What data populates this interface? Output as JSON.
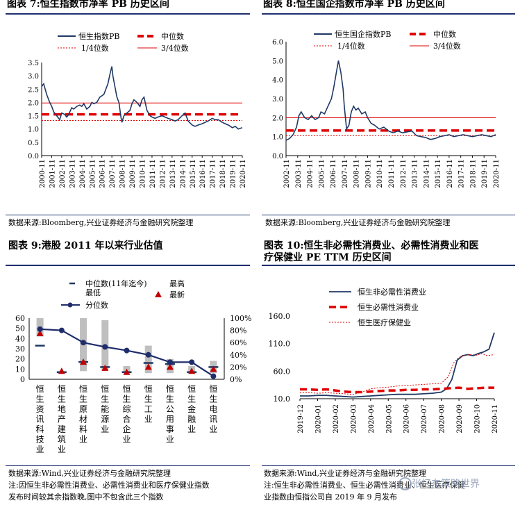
{
  "panels": {
    "p7": {
      "title": "图表 7:恒生指数市净率 PB 历史区间",
      "source": "数据来源:Bloomberg,兴业证券经济与金融研究院整理"
    },
    "p8": {
      "title": "图表 8:恒生国企指数市净率 PB 历史区间",
      "source": "数据来源:Bloomberg,兴业证券经济与金融研究院整理"
    },
    "p9": {
      "title": "图表 9:港股 2011 年以来行业估值",
      "source": "数据来源:Wind,兴业证券经济与金融研究院整理",
      "note1": "注:因恒生非必需性消费业、必需性消费业和医疗保健业指数",
      "note2": "发布时间较其余指数晚,图中不包含此三个指数"
    },
    "p10": {
      "title1": "图表 10:恒生非必需性消费业、必需性消费业和医",
      "title2": "疗保健业 PE TTM 历史区间",
      "source": "数据来源:Wind,兴业证券经济与金融研究院整理",
      "note1": "注:恒生非必需性消费业、恒生必需性消费业、恒生医疗保健",
      "note2": "业指数由恒指公司自 2019 年 9 月发布"
    }
  },
  "watermark": "张忆东策略世界",
  "colors": {
    "navy": "#1f3864",
    "red": "#e00000",
    "gray": "#bfbfbf"
  },
  "chart_data": [
    {
      "id": "hsi_pb",
      "type": "line",
      "title": "恒生指数市净率 PB 历史区间",
      "ylim": [
        0,
        3.5
      ],
      "yticks": [
        "0.0",
        "0.5",
        "1.0",
        "1.5",
        "2.0",
        "2.5",
        "3.0",
        "3.5"
      ],
      "xticks": [
        "2000-11",
        "2001-11",
        "2002-11",
        "2003-11",
        "2004-11",
        "2005-11",
        "2006-11",
        "2007-11",
        "2008-11",
        "2009-11",
        "2010-11",
        "2011-11",
        "2012-11",
        "2013-11",
        "2014-11",
        "2015-11",
        "2016-11",
        "2017-11",
        "2018-11",
        "2019-11",
        "2020-11"
      ],
      "legend": {
        "line": "恒生指数PB",
        "median": "中位数",
        "q1": "1/4位数",
        "q3": "3/4位数"
      },
      "median": 1.55,
      "q1": 1.32,
      "q3": 1.98,
      "series": {
        "x": [
          0,
          0.2,
          0.5,
          0.8,
          1,
          1.2,
          1.5,
          1.8,
          2,
          2.3,
          2.5,
          2.7,
          3,
          3.2,
          3.5,
          3.8,
          4,
          4.2,
          4.5,
          4.8,
          5,
          5.2,
          5.5,
          5.8,
          6,
          6.2,
          6.4,
          6.6,
          6.8,
          7,
          7.1,
          7.3,
          7.5,
          7.7,
          7.9,
          8,
          8.2,
          8.5,
          8.8,
          9,
          9.2,
          9.5,
          9.8,
          10,
          10.2,
          10.5,
          10.8,
          11,
          11.3,
          11.6,
          12,
          12.3,
          12.6,
          13,
          13.3,
          13.6,
          14,
          14.3,
          14.6,
          15,
          15.3,
          15.6,
          16,
          16.3,
          16.6,
          17,
          17.3,
          17.6,
          18,
          18.3,
          18.6,
          19,
          19.3,
          19.6,
          20
        ],
        "y": [
          2.6,
          2.7,
          2.3,
          2.0,
          1.85,
          1.65,
          1.5,
          1.35,
          1.6,
          1.55,
          1.45,
          1.55,
          1.8,
          1.75,
          1.85,
          1.9,
          1.85,
          1.95,
          1.75,
          1.85,
          2.0,
          1.95,
          2.0,
          2.2,
          2.25,
          2.3,
          2.5,
          2.7,
          3.05,
          3.35,
          3.0,
          2.6,
          2.2,
          2.0,
          1.45,
          1.25,
          1.5,
          1.6,
          1.7,
          1.95,
          2.1,
          2.0,
          1.85,
          2.1,
          2.2,
          1.7,
          1.5,
          1.45,
          1.4,
          1.45,
          1.5,
          1.45,
          1.4,
          1.35,
          1.3,
          1.35,
          1.5,
          1.6,
          1.3,
          1.15,
          1.1,
          1.15,
          1.2,
          1.25,
          1.3,
          1.4,
          1.35,
          1.35,
          1.25,
          1.2,
          1.15,
          1.05,
          1.1,
          1.0,
          1.05
        ]
      }
    },
    {
      "id": "hscei_pb",
      "type": "line",
      "title": "恒生国企指数市净率 PB 历史区间",
      "ylim": [
        0,
        6
      ],
      "yticks": [
        "0.0",
        "1.0",
        "2.0",
        "3.0",
        "4.0",
        "5.0",
        "6.0"
      ],
      "xticks": [
        "2002-11",
        "2003-11",
        "2004-11",
        "2005-11",
        "2006-11",
        "2007-11",
        "2008-11",
        "2009-11",
        "2010-11",
        "2011-11",
        "2012-11",
        "2013-11",
        "2014-11",
        "2015-11",
        "2016-11",
        "2017-11",
        "2018-11",
        "2019-11",
        "2020-11"
      ],
      "legend": {
        "line": "恒生国企指数PB",
        "median": "中位数",
        "q1": "1/4位数",
        "q3": "3/4位数"
      },
      "median": 1.32,
      "q1": 1.05,
      "q3": 2.0,
      "series": {
        "x": [
          0,
          0.3,
          0.6,
          0.9,
          1.1,
          1.3,
          1.6,
          1.9,
          2.2,
          2.5,
          2.8,
          3,
          3.3,
          3.6,
          3.9,
          4.1,
          4.3,
          4.5,
          4.7,
          4.9,
          5,
          5.2,
          5.4,
          5.6,
          5.8,
          6,
          6.2,
          6.5,
          6.8,
          7,
          7.3,
          7.6,
          8,
          8.4,
          8.8,
          9.2,
          9.6,
          10,
          10.4,
          10.8,
          11.2,
          11.6,
          12,
          12.4,
          12.8,
          13.2,
          13.6,
          14,
          14.4,
          14.8,
          15.2,
          15.6,
          16,
          16.4,
          16.8,
          17.2,
          17.6,
          18
        ],
        "y": [
          0.8,
          0.9,
          1.1,
          1.5,
          2.1,
          2.3,
          2.0,
          1.9,
          2.1,
          1.9,
          2.0,
          2.3,
          2.2,
          2.6,
          3.0,
          3.6,
          4.3,
          5.0,
          4.4,
          3.5,
          2.6,
          1.4,
          1.6,
          2.3,
          2.6,
          2.4,
          2.5,
          2.2,
          2.3,
          2.0,
          1.7,
          1.6,
          1.4,
          1.5,
          1.3,
          1.2,
          1.3,
          1.2,
          1.25,
          1.3,
          1.05,
          1.0,
          0.95,
          0.85,
          0.9,
          1.0,
          1.05,
          1.1,
          1.0,
          1.05,
          1.1,
          1.05,
          1.0,
          1.05,
          1.1,
          1.05,
          1.0,
          1.1
        ]
      }
    },
    {
      "id": "industry_val",
      "type": "bar",
      "title": "港股 2011 年以来行业估值",
      "categories": [
        "恒生资讯科技业",
        "恒生地产建筑业",
        "恒生原材料业",
        "恒生能源业",
        "恒生综合企业",
        "恒生工业",
        "恒生公用事业",
        "恒生金融业",
        "恒生电讯业"
      ],
      "ylim_left": [
        0,
        60
      ],
      "yticks_left": [
        "0",
        "10",
        "20",
        "30",
        "40",
        "50",
        "60"
      ],
      "ylim_right": [
        0,
        100
      ],
      "yticks_right": [
        "0%",
        "20%",
        "40%",
        "60%",
        "80%",
        "100%"
      ],
      "legend": {
        "median": "中位数(11年迄今)",
        "high": "最高",
        "low": "最低",
        "latest": "最新",
        "pct": "分位数"
      },
      "high": [
        60,
        7,
        60,
        58,
        13,
        33,
        20,
        13,
        18
      ],
      "low": [
        42,
        6,
        8,
        9,
        6,
        6,
        6,
        6,
        6
      ],
      "median": [
        33,
        7,
        17,
        12,
        7,
        16,
        15,
        7,
        12
      ],
      "latest": [
        45,
        8,
        17,
        11,
        7,
        12,
        12,
        8,
        10
      ],
      "percentile": [
        82,
        80,
        60,
        53,
        47,
        40,
        28,
        28,
        5
      ]
    },
    {
      "id": "consumer_pe",
      "type": "line",
      "title": "恒生非必需性消费业、必需性消费业和医疗保健业 PE TTM 历史区间",
      "ylim": [
        10,
        160
      ],
      "yticks": [
        "10.0",
        "60.0",
        "110.0",
        "160.0"
      ],
      "xticks": [
        "2019-12",
        "2020-01",
        "2020-02",
        "2020-03",
        "2020-04",
        "2020-05",
        "2020-06",
        "2020-07",
        "2020-08",
        "2020-09",
        "2020-10",
        "2020-11"
      ],
      "series": [
        {
          "name": "恒生非必需性消费业",
          "x": [
            0,
            0.5,
            1,
            1.5,
            2,
            2.5,
            3,
            3.5,
            4,
            4.5,
            5,
            5.5,
            6,
            6.5,
            7,
            7.5,
            8,
            8.3,
            8.6,
            8.9,
            9.2,
            9.5,
            9.8,
            10.1,
            10.4,
            10.7,
            11
          ],
          "y": [
            15,
            15,
            16,
            16,
            15,
            14,
            13,
            14,
            15,
            16,
            17,
            18,
            18,
            18,
            19,
            20,
            22,
            28,
            45,
            80,
            88,
            90,
            88,
            92,
            95,
            100,
            130
          ]
        },
        {
          "name": "恒生必需性消费业",
          "x": [
            0,
            0.5,
            1,
            1.5,
            2,
            2.5,
            3,
            3.5,
            4,
            4.5,
            5,
            5.5,
            6,
            6.5,
            7,
            7.5,
            8,
            8.5,
            9,
            9.5,
            10,
            10.5,
            11
          ],
          "y": [
            27,
            27,
            26,
            27,
            25,
            23,
            22,
            22,
            23,
            24,
            25,
            25,
            26,
            26,
            27,
            27,
            28,
            29,
            30,
            28,
            29,
            30,
            30
          ]
        },
        {
          "name": "恒生医疗保健业",
          "x": [
            0,
            0.5,
            1,
            1.5,
            2,
            2.5,
            3,
            3.5,
            4,
            4.5,
            5,
            5.5,
            6,
            6.5,
            7,
            7.5,
            8,
            8.4,
            8.7,
            9,
            9.3,
            9.6,
            10,
            10.3,
            10.6,
            11
          ],
          "y": [
            21,
            21,
            20,
            21,
            20,
            19,
            18,
            22,
            28,
            30,
            31,
            33,
            34,
            35,
            36,
            37,
            38,
            50,
            75,
            85,
            88,
            90,
            89,
            92,
            88,
            90
          ]
        }
      ]
    }
  ]
}
